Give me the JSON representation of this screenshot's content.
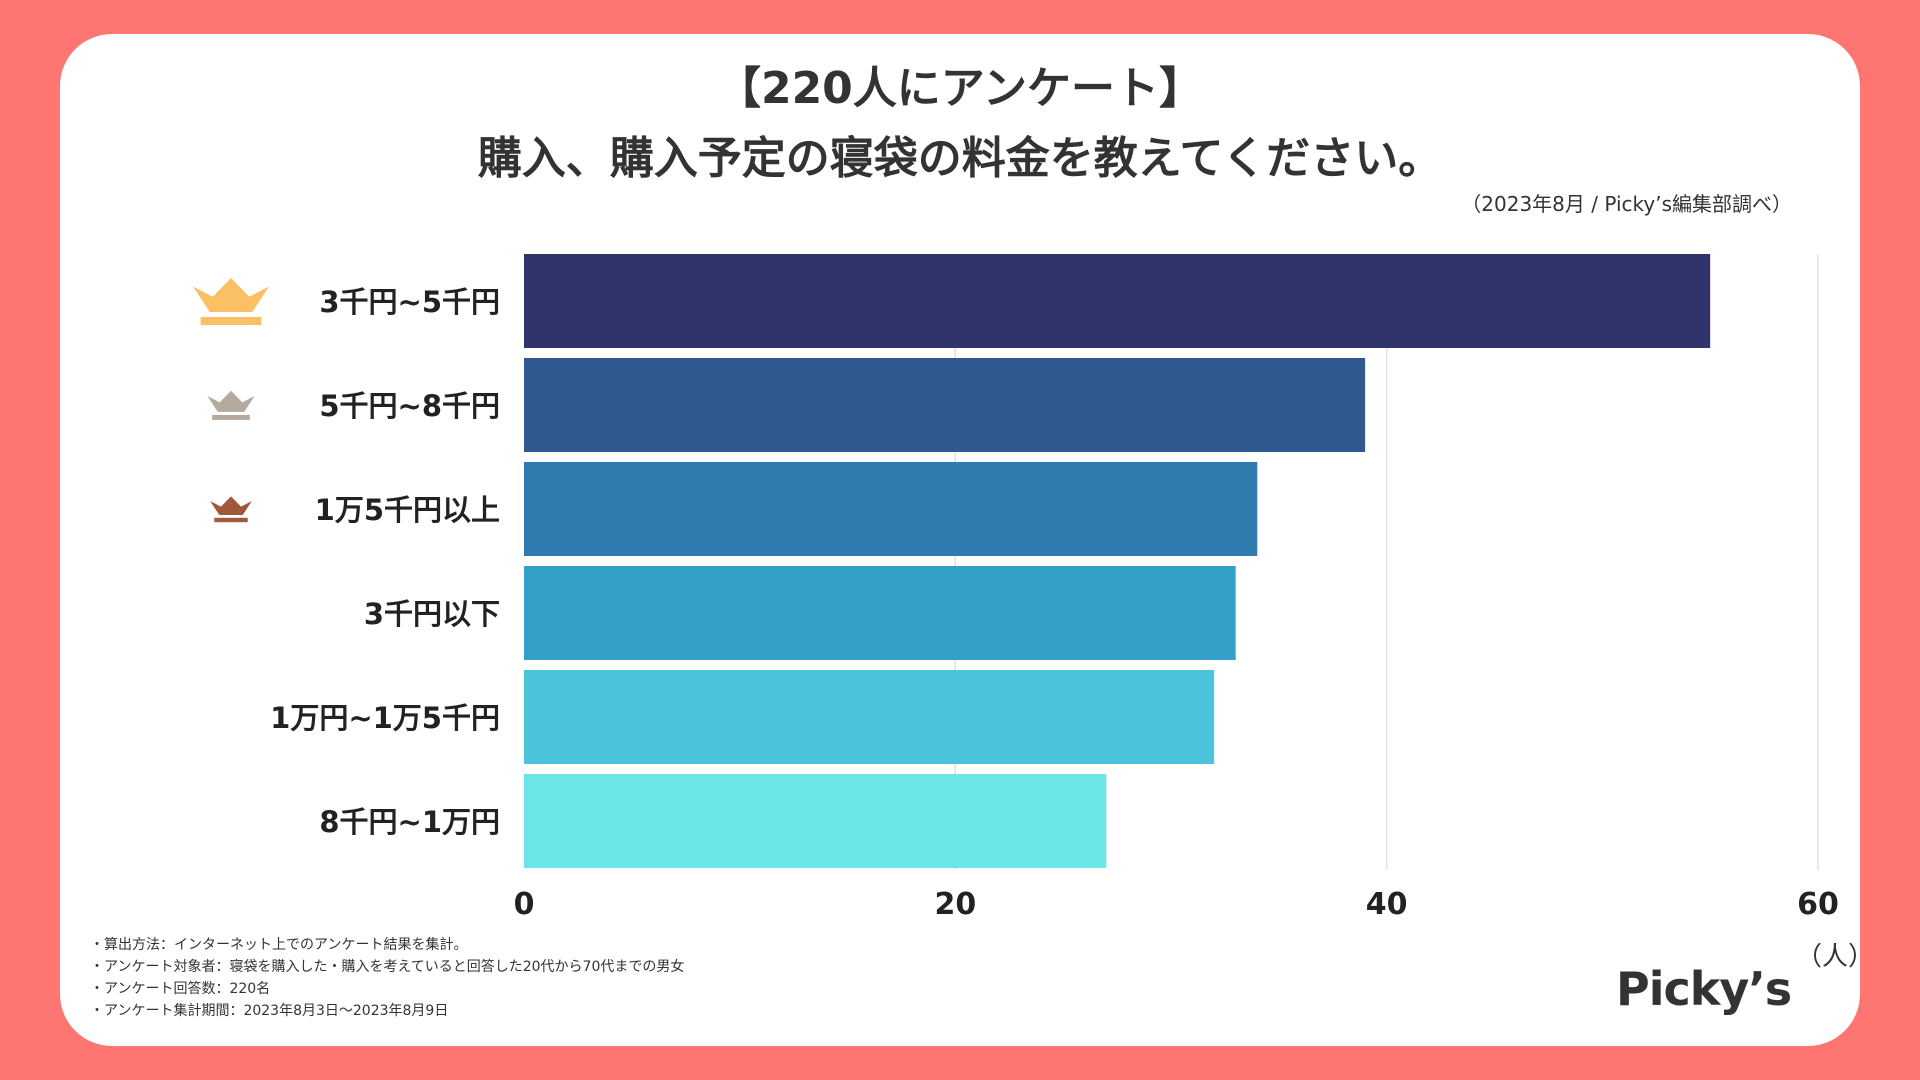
{
  "header": {
    "title_line1": "【220人にアンケート】",
    "title_line2": "購入、購入予定の寝袋の料金を教えてください。",
    "source": "（2023年8月 / Picky’s編集部調べ）"
  },
  "footer": {
    "notes": [
      "・算出方法：インターネット上でのアンケート結果を集計。",
      "・アンケート対象者：寝袋を購入した・購入を考えていると回答した20代から70代までの男女",
      "・アンケート回答数：220名",
      "・アンケート集計期間：2023年8月3日〜2023年8月9日"
    ],
    "logo": "Picky’s",
    "unit": "（人）"
  },
  "colors": {
    "background": "#ff7571",
    "gold": "#fcc064",
    "silver": "#b3a99d",
    "bronze": "#a0583a"
  },
  "chart_data": {
    "type": "bar",
    "orientation": "horizontal",
    "categories": [
      "3千円~5千円",
      "5千円~8千円",
      "1万5千円以上",
      "3千円以下",
      "1万円~1万5千円",
      "8千円~1万円"
    ],
    "values": [
      55,
      39,
      34,
      33,
      32,
      27
    ],
    "bar_colors": [
      "#30346a",
      "#305a8f",
      "#2f7bb0",
      "#34a0c9",
      "#4bc3da",
      "#6ce5e9"
    ],
    "xticks": [
      0,
      20,
      40,
      60
    ],
    "xlim": [
      0,
      60
    ],
    "grid": true,
    "ranks": [
      "gold-crown-icon",
      "silver-crown-icon",
      "bronze-crown-icon"
    ]
  }
}
